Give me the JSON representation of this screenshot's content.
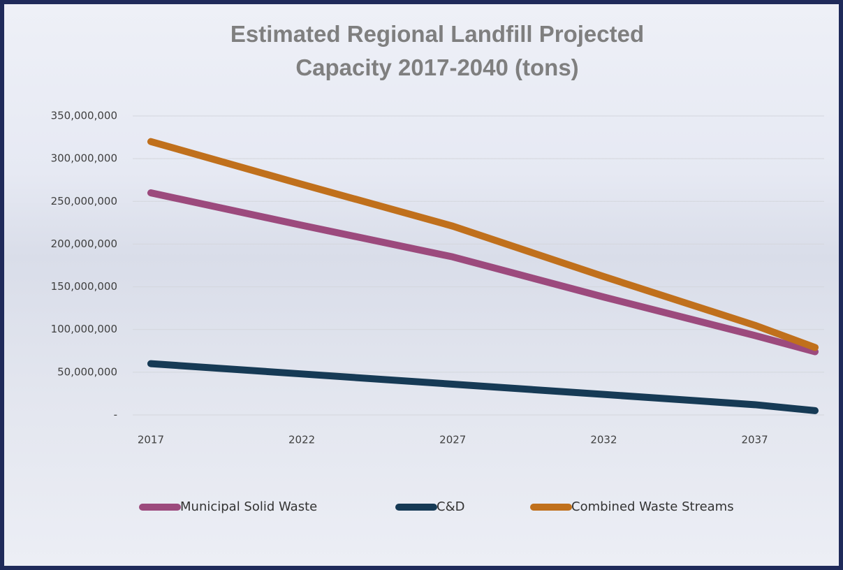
{
  "chart_data": {
    "type": "line",
    "title": "Estimated Regional Landfill Projected Capacity 2017-2040 (tons)",
    "x": [
      2017,
      2022,
      2027,
      2032,
      2037,
      2039
    ],
    "series": [
      {
        "name": "Municipal Solid Waste",
        "color": "#9c4a7d",
        "values": [
          260000000,
          222000000,
          185000000,
          138000000,
          93000000,
          74000000
        ]
      },
      {
        "name": "C&D",
        "color": "#163a55",
        "values": [
          60000000,
          48000000,
          36000000,
          24000000,
          12000000,
          5000000
        ]
      },
      {
        "name": "Combined Waste Streams",
        "color": "#c0701c",
        "values": [
          320000000,
          270000000,
          221000000,
          162000000,
          105000000,
          79000000
        ]
      }
    ],
    "xlim": [
      2016.4,
      2039.3
    ],
    "xticks": [
      2017,
      2022,
      2027,
      2032,
      2037
    ],
    "ylim": [
      0,
      350000000
    ],
    "yticks": [
      {
        "value": 0,
        "label": "-"
      },
      {
        "value": 50000000,
        "label": "50,000,000"
      },
      {
        "value": 100000000,
        "label": "100,000,000"
      },
      {
        "value": 150000000,
        "label": "150,000,000"
      },
      {
        "value": 200000000,
        "label": "200,000,000"
      },
      {
        "value": 250000000,
        "label": "250,000,000"
      },
      {
        "value": 300000000,
        "label": "300,000,000"
      },
      {
        "value": 350000000,
        "label": "350,000,000"
      }
    ],
    "grid": true,
    "legend": "bottom"
  }
}
